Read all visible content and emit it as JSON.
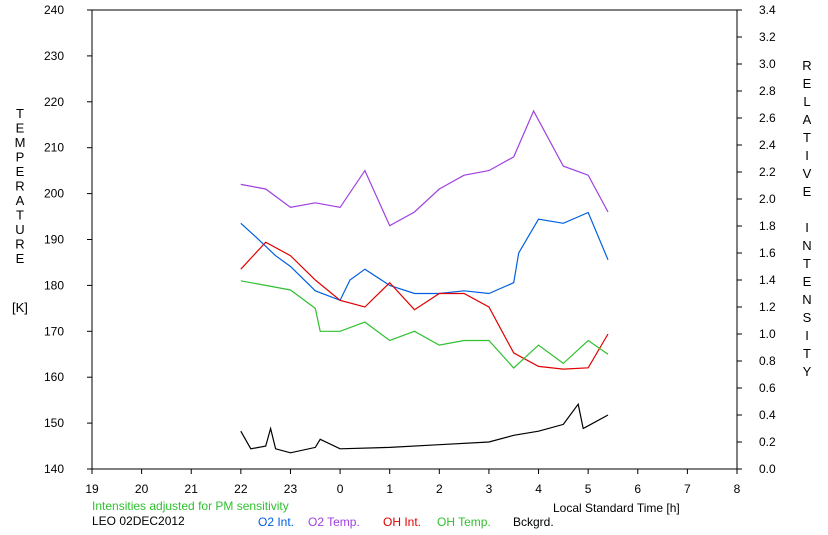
{
  "chart_data": {
    "type": "line",
    "left_axis": {
      "title": "TEMPERATURE",
      "unit": "[K]",
      "ylim": [
        140,
        240
      ],
      "ticks": [
        140,
        150,
        160,
        170,
        180,
        190,
        200,
        210,
        220,
        230,
        240
      ]
    },
    "right_axis": {
      "title": "RELATIVE INTENSITY",
      "ylim": [
        0.0,
        3.4
      ],
      "ticks": [
        "0.0",
        "0.2",
        "0.4",
        "0.6",
        "0.8",
        "1.0",
        "1.2",
        "1.4",
        "1.6",
        "1.8",
        "2.0",
        "2.2",
        "2.4",
        "2.6",
        "2.8",
        "3.0",
        "3.2",
        "3.4"
      ]
    },
    "x_axis": {
      "title": "Local Standard Time [h]",
      "xlim": [
        19,
        32
      ],
      "tick_labels": [
        "19",
        "20",
        "21",
        "22",
        "23",
        "0",
        "1",
        "2",
        "3",
        "4",
        "5",
        "6",
        "7",
        "8"
      ]
    },
    "note": "Intensities adjusted for PM sensitivity",
    "station": "LEO 02DEC2012",
    "legend": [
      {
        "name": "O2 Int.",
        "color": "#0060e0"
      },
      {
        "name": "O2 Temp.",
        "color": "#a040e0"
      },
      {
        "name": "OH Int.",
        "color": "#e00000"
      },
      {
        "name": "OH Temp.",
        "color": "#30c030"
      },
      {
        "name": "Bckgrd.",
        "color": "#000000"
      }
    ],
    "series": [
      {
        "name": "O2 Temp.",
        "axis": "left",
        "color": "#a040e0",
        "x": [
          22.0,
          22.5,
          23.0,
          23.5,
          24.0,
          24.5,
          25.0,
          25.5,
          26.0,
          26.5,
          27.0,
          27.5,
          27.9,
          28.5,
          29.0,
          29.4
        ],
        "y": [
          202,
          201,
          197,
          198,
          197,
          205,
          193,
          196,
          201,
          204,
          205,
          208,
          218,
          206,
          204,
          196
        ]
      },
      {
        "name": "O2 Int.",
        "axis": "right",
        "color": "#0060e0",
        "x": [
          22.0,
          22.3,
          22.7,
          23.0,
          23.5,
          24.0,
          24.2,
          24.5,
          25.0,
          25.5,
          26.0,
          26.5,
          27.0,
          27.5,
          27.6,
          28.0,
          28.5,
          29.0,
          29.4
        ],
        "y": [
          1.82,
          1.72,
          1.58,
          1.5,
          1.32,
          1.25,
          1.4,
          1.48,
          1.36,
          1.3,
          1.3,
          1.32,
          1.3,
          1.38,
          1.6,
          1.85,
          1.82,
          1.9,
          1.55
        ]
      },
      {
        "name": "OH Int.",
        "axis": "right",
        "color": "#e00000",
        "x": [
          22.0,
          22.5,
          23.0,
          23.5,
          24.0,
          24.5,
          25.0,
          25.5,
          26.0,
          26.5,
          27.0,
          27.5,
          28.0,
          28.5,
          29.0,
          29.4
        ],
        "y": [
          1.48,
          1.68,
          1.58,
          1.4,
          1.25,
          1.2,
          1.38,
          1.18,
          1.3,
          1.3,
          1.2,
          0.86,
          0.76,
          0.74,
          0.75,
          1.0
        ]
      },
      {
        "name": "OH Temp.",
        "axis": "left",
        "color": "#30c030",
        "x": [
          22.0,
          22.5,
          23.0,
          23.5,
          23.6,
          24.0,
          24.5,
          25.0,
          25.5,
          26.0,
          26.5,
          27.0,
          27.5,
          28.0,
          28.5,
          29.0,
          29.4
        ],
        "y": [
          181,
          180,
          179,
          175,
          170,
          170,
          172,
          168,
          170,
          167,
          168,
          168,
          162,
          167,
          163,
          168,
          165
        ]
      },
      {
        "name": "Bckgrd.",
        "axis": "right",
        "color": "#000000",
        "x": [
          22.0,
          22.2,
          22.5,
          22.6,
          22.7,
          23.0,
          23.5,
          23.6,
          24.0,
          25.0,
          26.0,
          27.0,
          27.5,
          28.0,
          28.5,
          28.8,
          28.9,
          29.0,
          29.4
        ],
        "y": [
          0.28,
          0.15,
          0.17,
          0.3,
          0.15,
          0.12,
          0.16,
          0.22,
          0.15,
          0.16,
          0.18,
          0.2,
          0.25,
          0.28,
          0.33,
          0.48,
          0.3,
          0.32,
          0.4
        ]
      }
    ]
  }
}
